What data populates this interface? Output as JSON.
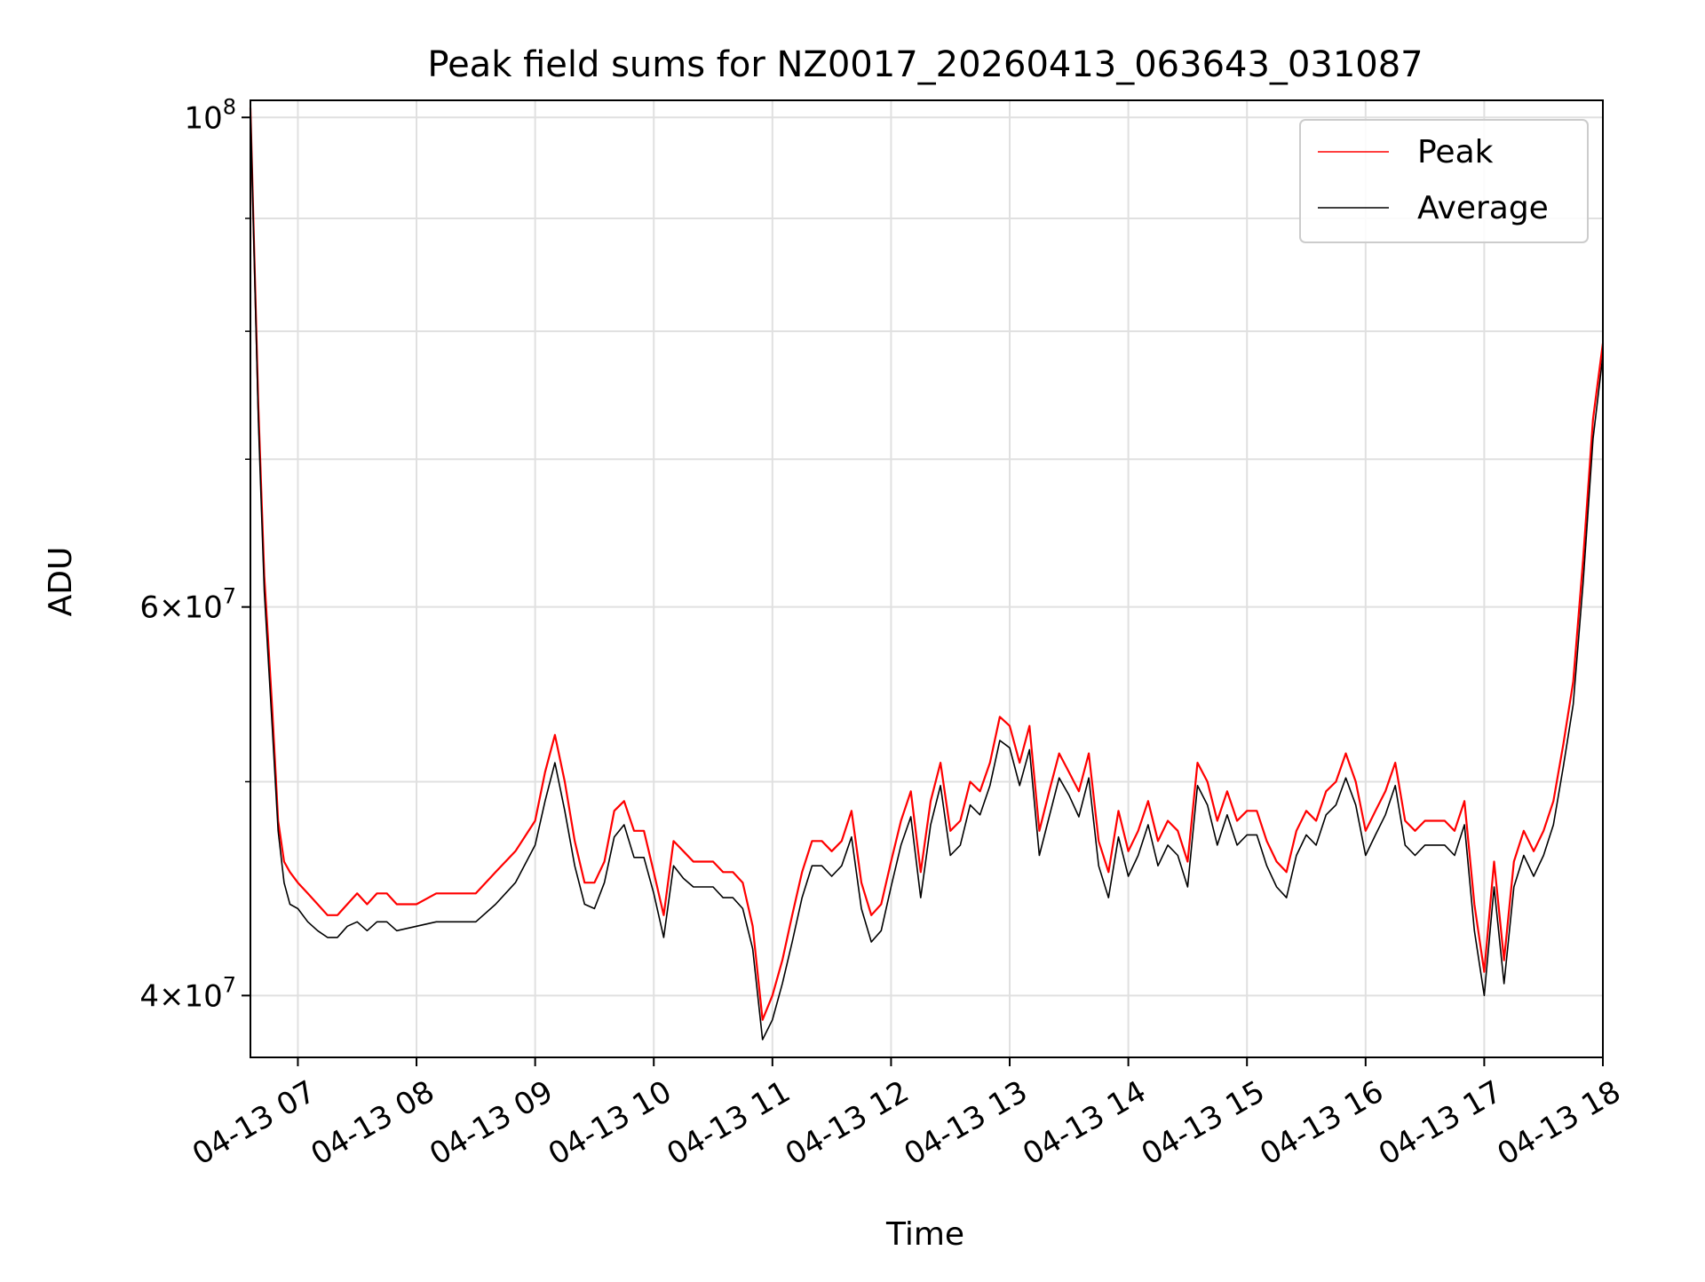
{
  "chart_data": {
    "type": "line",
    "title": "Peak field sums for NZ0017_20260413_063643_031087",
    "xlabel": "Time",
    "ylabel": "ADU",
    "yscale": "log",
    "xlim": [
      "2026-04-13 06:36",
      "2026-04-13 18:00"
    ],
    "ylim": [
      37500000,
      101800000
    ],
    "x_tick_labels": [
      "04-13 07",
      "04-13 08",
      "04-13 09",
      "04-13 10",
      "04-13 11",
      "04-13 12",
      "04-13 13",
      "04-13 14",
      "04-13 15",
      "04-13 16",
      "04-13 17",
      "04-13 18"
    ],
    "y_major_tick_labels": [
      {
        "value": 100000000,
        "mantissa": "",
        "exponent": "8"
      },
      {
        "value": 60000000,
        "mantissa": "6",
        "exponent": "7"
      },
      {
        "value": 40000000,
        "mantissa": "4",
        "exponent": "7"
      }
    ],
    "y_minor_ticks": [
      50000000,
      70000000,
      80000000,
      90000000
    ],
    "grid": true,
    "legend_position": "upper right",
    "series": [
      {
        "name": "Peak",
        "color": "#ff0000",
        "times": [
          "06:36",
          "06:40",
          "06:43",
          "06:47",
          "06:50",
          "06:53",
          "06:56",
          "07:00",
          "07:05",
          "07:10",
          "07:15",
          "07:20",
          "07:25",
          "07:30",
          "07:35",
          "07:40",
          "07:45",
          "07:50",
          "08:00",
          "08:10",
          "08:20",
          "08:30",
          "08:40",
          "08:50",
          "09:00",
          "09:05",
          "09:10",
          "09:15",
          "09:20",
          "09:25",
          "09:30",
          "09:35",
          "09:40",
          "09:45",
          "09:50",
          "09:55",
          "10:00",
          "10:05",
          "10:10",
          "10:15",
          "10:20",
          "10:25",
          "10:30",
          "10:35",
          "10:40",
          "10:45",
          "10:50",
          "10:55",
          "11:00",
          "11:05",
          "11:10",
          "11:15",
          "11:20",
          "11:25",
          "11:30",
          "11:35",
          "11:40",
          "11:45",
          "11:50",
          "11:55",
          "12:00",
          "12:05",
          "12:10",
          "12:15",
          "12:20",
          "12:25",
          "12:30",
          "12:35",
          "12:40",
          "12:45",
          "12:50",
          "12:55",
          "13:00",
          "13:05",
          "13:10",
          "13:15",
          "13:20",
          "13:25",
          "13:30",
          "13:35",
          "13:40",
          "13:45",
          "13:50",
          "13:55",
          "14:00",
          "14:05",
          "14:10",
          "14:15",
          "14:20",
          "14:25",
          "14:30",
          "14:35",
          "14:40",
          "14:45",
          "14:50",
          "14:55",
          "15:00",
          "15:05",
          "15:10",
          "15:15",
          "15:20",
          "15:25",
          "15:30",
          "15:35",
          "15:40",
          "15:45",
          "15:50",
          "15:55",
          "16:00",
          "16:05",
          "16:10",
          "16:15",
          "16:20",
          "16:25",
          "16:30",
          "16:35",
          "16:40",
          "16:45",
          "16:50",
          "16:55",
          "17:00",
          "17:05",
          "17:10",
          "17:15",
          "17:20",
          "17:25",
          "17:30",
          "17:35",
          "17:40",
          "17:45",
          "17:50",
          "17:55",
          "18:00"
        ],
        "values": [
          101000000,
          74000000,
          62000000,
          54000000,
          48000000,
          46000000,
          45500000,
          45000000,
          44500000,
          44000000,
          43500000,
          43500000,
          44000000,
          44500000,
          44000000,
          44500000,
          44500000,
          44000000,
          44000000,
          44500000,
          44500000,
          44500000,
          45500000,
          46500000,
          48000000,
          50500000,
          52500000,
          50000000,
          47000000,
          45000000,
          45000000,
          46000000,
          48500000,
          49000000,
          47500000,
          47500000,
          45500000,
          43500000,
          47000000,
          46500000,
          46000000,
          46000000,
          46000000,
          45500000,
          45500000,
          45000000,
          43000000,
          39000000,
          40000000,
          41500000,
          43500000,
          45500000,
          47000000,
          47000000,
          46500000,
          47000000,
          48500000,
          45000000,
          43500000,
          44000000,
          46000000,
          48000000,
          49500000,
          45500000,
          49000000,
          51000000,
          47500000,
          48000000,
          50000000,
          49500000,
          51000000,
          53500000,
          53000000,
          51000000,
          53000000,
          47500000,
          49500000,
          51500000,
          50500000,
          49500000,
          51500000,
          47000000,
          45500000,
          48500000,
          46500000,
          47500000,
          49000000,
          47000000,
          48000000,
          47500000,
          46000000,
          51000000,
          50000000,
          48000000,
          49500000,
          48000000,
          48500000,
          48500000,
          47000000,
          46000000,
          45500000,
          47500000,
          48500000,
          48000000,
          49500000,
          50000000,
          51500000,
          50000000,
          47500000,
          48500000,
          49500000,
          51000000,
          48000000,
          47500000,
          48000000,
          48000000,
          48000000,
          47500000,
          49000000,
          44000000,
          41000000,
          46000000,
          41500000,
          46000000,
          47500000,
          46500000,
          47500000,
          49000000,
          52000000,
          55500000,
          63000000,
          73000000,
          79000000
        ]
      },
      {
        "name": "Average",
        "color": "#000000",
        "times": [
          "06:36",
          "06:40",
          "06:43",
          "06:47",
          "06:50",
          "06:53",
          "06:56",
          "07:00",
          "07:05",
          "07:10",
          "07:15",
          "07:20",
          "07:25",
          "07:30",
          "07:35",
          "07:40",
          "07:45",
          "07:50",
          "08:00",
          "08:10",
          "08:20",
          "08:30",
          "08:40",
          "08:50",
          "09:00",
          "09:05",
          "09:10",
          "09:15",
          "09:20",
          "09:25",
          "09:30",
          "09:35",
          "09:40",
          "09:45",
          "09:50",
          "09:55",
          "10:00",
          "10:05",
          "10:10",
          "10:15",
          "10:20",
          "10:25",
          "10:30",
          "10:35",
          "10:40",
          "10:45",
          "10:50",
          "10:55",
          "11:00",
          "11:05",
          "11:10",
          "11:15",
          "11:20",
          "11:25",
          "11:30",
          "11:35",
          "11:40",
          "11:45",
          "11:50",
          "11:55",
          "12:00",
          "12:05",
          "12:10",
          "12:15",
          "12:20",
          "12:25",
          "12:30",
          "12:35",
          "12:40",
          "12:45",
          "12:50",
          "12:55",
          "13:00",
          "13:05",
          "13:10",
          "13:15",
          "13:20",
          "13:25",
          "13:30",
          "13:35",
          "13:40",
          "13:45",
          "13:50",
          "13:55",
          "14:00",
          "14:05",
          "14:10",
          "14:15",
          "14:20",
          "14:25",
          "14:30",
          "14:35",
          "14:40",
          "14:45",
          "14:50",
          "14:55",
          "15:00",
          "15:05",
          "15:10",
          "15:15",
          "15:20",
          "15:25",
          "15:30",
          "15:35",
          "15:40",
          "15:45",
          "15:50",
          "15:55",
          "16:00",
          "16:05",
          "16:10",
          "16:15",
          "16:20",
          "16:25",
          "16:30",
          "16:35",
          "16:40",
          "16:45",
          "16:50",
          "16:55",
          "17:00",
          "17:05",
          "17:10",
          "17:15",
          "17:20",
          "17:25",
          "17:30",
          "17:35",
          "17:40",
          "17:45",
          "17:50",
          "17:55",
          "18:00"
        ],
        "values": [
          101000000,
          73000000,
          61000000,
          53000000,
          47500000,
          45000000,
          44000000,
          43800000,
          43200000,
          42800000,
          42500000,
          42500000,
          43000000,
          43200000,
          42800000,
          43200000,
          43200000,
          42800000,
          43000000,
          43200000,
          43200000,
          43200000,
          44000000,
          45000000,
          46800000,
          49000000,
          51000000,
          48500000,
          45800000,
          44000000,
          43800000,
          45000000,
          47200000,
          47800000,
          46200000,
          46200000,
          44500000,
          42500000,
          45800000,
          45200000,
          44800000,
          44800000,
          44800000,
          44300000,
          44300000,
          43800000,
          42000000,
          38200000,
          39000000,
          40500000,
          42300000,
          44300000,
          45800000,
          45800000,
          45300000,
          45800000,
          47200000,
          43800000,
          42300000,
          42800000,
          44800000,
          46800000,
          48200000,
          44300000,
          47800000,
          49800000,
          46300000,
          46800000,
          48800000,
          48300000,
          49800000,
          52200000,
          51800000,
          49800000,
          51700000,
          46300000,
          48200000,
          50200000,
          49300000,
          48200000,
          50200000,
          45800000,
          44300000,
          47200000,
          45300000,
          46300000,
          47800000,
          45800000,
          46800000,
          46300000,
          44800000,
          49800000,
          48800000,
          46800000,
          48300000,
          46800000,
          47300000,
          47300000,
          45800000,
          44800000,
          44300000,
          46300000,
          47300000,
          46800000,
          48300000,
          48800000,
          50200000,
          48800000,
          46300000,
          47300000,
          48300000,
          49800000,
          46800000,
          46300000,
          46800000,
          46800000,
          46800000,
          46300000,
          47800000,
          42800000,
          40000000,
          44800000,
          40500000,
          44800000,
          46300000,
          45300000,
          46300000,
          47800000,
          50800000,
          54200000,
          61500000,
          71500000,
          78000000
        ]
      }
    ]
  }
}
